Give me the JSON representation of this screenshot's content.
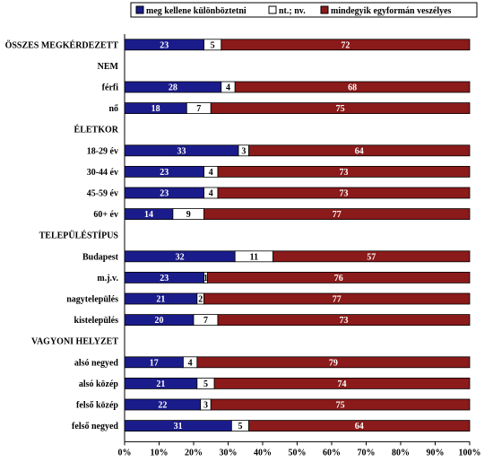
{
  "chart_data": {
    "type": "bar",
    "orientation": "horizontal",
    "stacked": true,
    "percent": true,
    "xlim": [
      0,
      100
    ],
    "x_ticks": [
      "0%",
      "10%",
      "20%",
      "30%",
      "40%",
      "50%",
      "60%",
      "70%",
      "80%",
      "90%",
      "100%"
    ],
    "legend_position": "top",
    "series": [
      {
        "name": "meg kellene különböztetni",
        "color": "#1b1c8c"
      },
      {
        "name": "nt.; nv.",
        "color": "#ffffff"
      },
      {
        "name": "mindegyik egyformán veszélyes",
        "color": "#8b1a1a"
      }
    ],
    "rows": [
      {
        "label": "ÖSSZES MEGKÉRDEZETT",
        "values": [
          23,
          5,
          72
        ]
      },
      {
        "label": "NEM",
        "values": null
      },
      {
        "label": "férfi",
        "values": [
          28,
          4,
          68
        ]
      },
      {
        "label": "nő",
        "values": [
          18,
          7,
          75
        ]
      },
      {
        "label": "ÉLETKOR",
        "values": null
      },
      {
        "label": "18-29 év",
        "values": [
          33,
          3,
          64
        ]
      },
      {
        "label": "30-44 év",
        "values": [
          23,
          4,
          73
        ]
      },
      {
        "label": "45-59 év",
        "values": [
          23,
          4,
          73
        ]
      },
      {
        "label": "60+ év",
        "values": [
          14,
          9,
          77
        ]
      },
      {
        "label": "TELEPÜLÉSTÍPUS",
        "values": null
      },
      {
        "label": "Budapest",
        "values": [
          32,
          11,
          57
        ]
      },
      {
        "label": "m.j.v.",
        "values": [
          23,
          1,
          76
        ]
      },
      {
        "label": "nagytelepülés",
        "values": [
          21,
          2,
          77
        ]
      },
      {
        "label": "kistelepülés",
        "values": [
          20,
          7,
          73
        ]
      },
      {
        "label": "VAGYONI HELYZET",
        "values": null
      },
      {
        "label": "alsó negyed",
        "values": [
          17,
          4,
          79
        ]
      },
      {
        "label": "alsó közép",
        "values": [
          21,
          5,
          74
        ]
      },
      {
        "label": "felső közép",
        "values": [
          22,
          3,
          75
        ]
      },
      {
        "label": "felső negyed",
        "values": [
          31,
          5,
          64
        ]
      }
    ]
  }
}
